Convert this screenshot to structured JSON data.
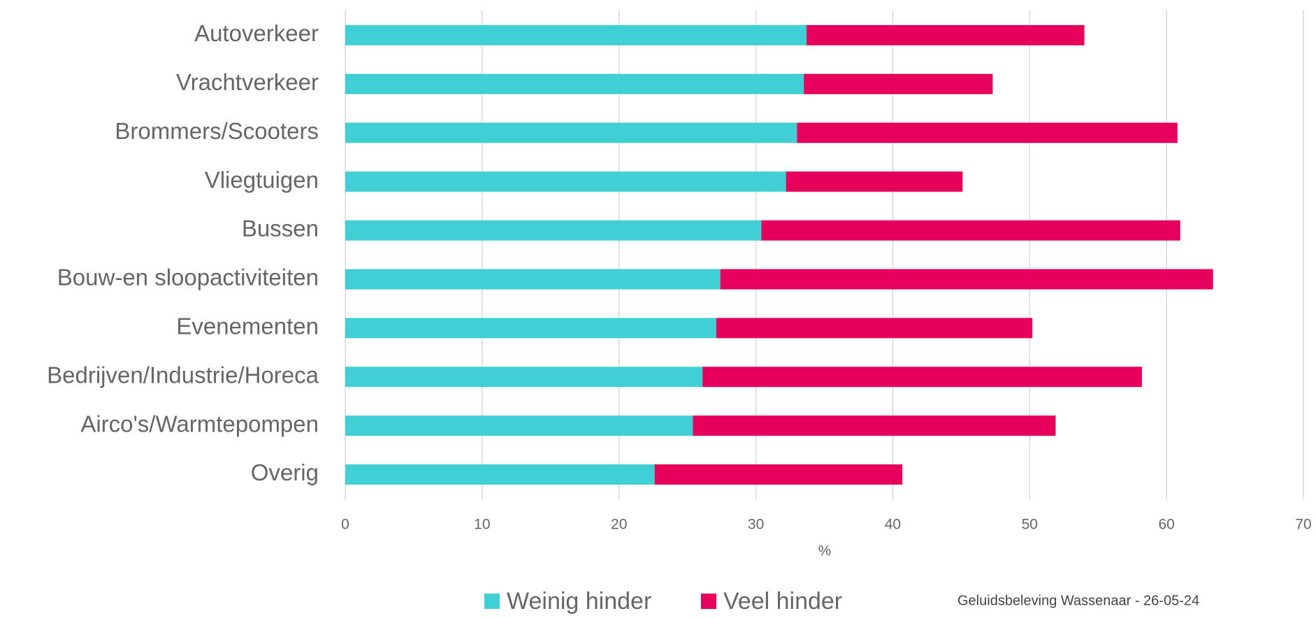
{
  "chart_data": {
    "type": "stacked_barh",
    "categories": [
      "Autoverkeer",
      "Vrachtverkeer",
      "Brommers/Scooters",
      "Vliegtuigen",
      "Bussen",
      "Bouw-en sloopactiviteiten",
      "Evenementen",
      "Bedrijven/Industrie/Horeca",
      "Airco's/Warmtepompen",
      "Overig"
    ],
    "series": [
      {
        "name": "Weinig hinder",
        "color": "#3fcfd5",
        "values": [
          33.7,
          33.5,
          33.0,
          32.2,
          30.4,
          27.4,
          27.1,
          26.1,
          25.4,
          22.6
        ]
      },
      {
        "name": "Veel hinder",
        "color": "#e6005c",
        "values": [
          20.3,
          13.8,
          27.8,
          12.9,
          30.6,
          36.0,
          23.1,
          32.1,
          26.5,
          18.1
        ]
      }
    ],
    "xlabel": "%",
    "xlim": [
      0,
      70
    ],
    "xticks": [
      0,
      10,
      20,
      30,
      40,
      50,
      60,
      70
    ],
    "grid": true,
    "legend": "bottom",
    "source": "Geluidsbeleving Wassenaar  -  26-05-24"
  }
}
